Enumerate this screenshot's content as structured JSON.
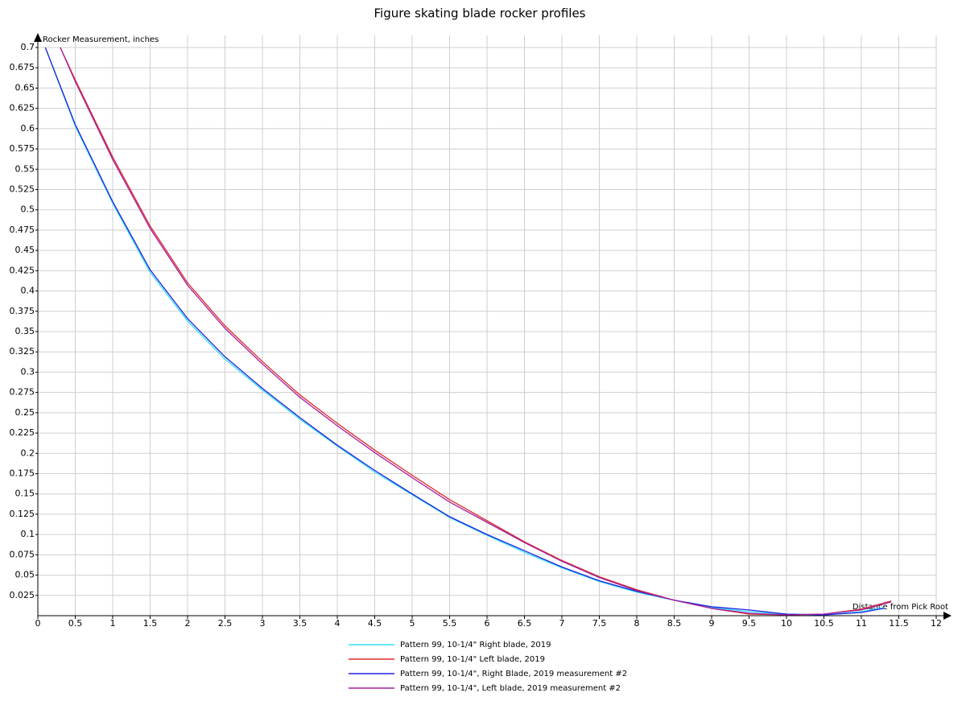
{
  "chart_data": {
    "type": "line",
    "title": "Figure skating blade rocker profiles",
    "y_label": "Rocker Measurement, inches",
    "x_label": "Distance from Pick Root",
    "xlim": [
      0,
      12
    ],
    "ylim": [
      0,
      0.7
    ],
    "xticks": [
      0,
      0.5,
      1,
      1.5,
      2,
      2.5,
      3,
      3.5,
      4,
      4.5,
      5,
      5.5,
      6,
      6.5,
      7,
      7.5,
      8,
      8.5,
      9,
      9.5,
      10,
      10.5,
      11,
      11.5,
      12
    ],
    "yticks": [
      0.025,
      0.05,
      0.075,
      0.1,
      0.125,
      0.15,
      0.175,
      0.2,
      0.225,
      0.25,
      0.275,
      0.3,
      0.325,
      0.35,
      0.375,
      0.4,
      0.425,
      0.45,
      0.475,
      0.5,
      0.525,
      0.55,
      0.575,
      0.6,
      0.625,
      0.65,
      0.675,
      0.7
    ],
    "grid": true,
    "series": [
      {
        "name": "Pattern 99, 10-1/4\" Right blade, 2019",
        "color": "#30e0f0",
        "x": [
          0.1,
          0.5,
          1,
          1.5,
          2,
          2.5,
          3,
          3.5,
          4,
          4.5,
          5,
          5.5,
          6,
          6.5,
          7,
          7.5,
          8,
          8.5,
          9,
          9.5,
          10,
          10.5,
          11,
          11.3
        ],
        "values": [
          0.7,
          0.603,
          0.508,
          0.423,
          0.363,
          0.316,
          0.278,
          0.242,
          0.209,
          0.177,
          0.149,
          0.121,
          0.099,
          0.078,
          0.059,
          0.042,
          0.029,
          0.019,
          0.01,
          0.005,
          0.002,
          0.001,
          0.005,
          0.01
        ]
      },
      {
        "name": "Pattern 99, 10-1/4\" Left blade, 2019",
        "color": "#e02828",
        "x": [
          0.3,
          0.5,
          1,
          1.5,
          2,
          2.5,
          3,
          3.5,
          4,
          4.5,
          5,
          5.5,
          6,
          6.5,
          7,
          7.5,
          8,
          8.5,
          9,
          9.5,
          10,
          10.5,
          11,
          11.4
        ],
        "values": [
          0.7,
          0.66,
          0.565,
          0.48,
          0.41,
          0.357,
          0.313,
          0.272,
          0.237,
          0.204,
          0.173,
          0.143,
          0.117,
          0.091,
          0.068,
          0.048,
          0.032,
          0.019,
          0.009,
          0.002,
          0.001,
          0.002,
          0.008,
          0.018
        ]
      },
      {
        "name": "Pattern 99, 10-1/4\", Right Blade, 2019 measurement #2",
        "color": "#2020e0",
        "x": [
          0.1,
          0.5,
          1,
          1.5,
          2,
          2.5,
          3,
          3.5,
          4,
          4.5,
          5,
          5.5,
          6,
          6.5,
          7,
          7.5,
          8,
          8.5,
          9,
          9.5,
          10,
          10.5,
          11,
          11.3
        ],
        "values": [
          0.7,
          0.605,
          0.51,
          0.426,
          0.366,
          0.319,
          0.28,
          0.244,
          0.21,
          0.179,
          0.15,
          0.122,
          0.1,
          0.08,
          0.06,
          0.043,
          0.03,
          0.019,
          0.011,
          0.007,
          0.002,
          0.001,
          0.004,
          0.009
        ]
      },
      {
        "name": "Pattern 99, 10-1/4\", Left blade, 2019 measurement #2",
        "color": "#a020a0",
        "x": [
          0.3,
          0.5,
          1,
          1.5,
          2,
          2.5,
          3,
          3.5,
          4,
          4.5,
          5,
          5.5,
          6,
          6.5,
          7,
          7.5,
          8,
          8.5,
          9,
          9.5,
          10,
          10.5,
          11,
          11.4
        ],
        "values": [
          0.7,
          0.658,
          0.562,
          0.477,
          0.407,
          0.354,
          0.31,
          0.269,
          0.234,
          0.201,
          0.17,
          0.14,
          0.115,
          0.09,
          0.067,
          0.047,
          0.031,
          0.019,
          0.009,
          0.003,
          0.001,
          0.002,
          0.007,
          0.017
        ]
      }
    ]
  }
}
